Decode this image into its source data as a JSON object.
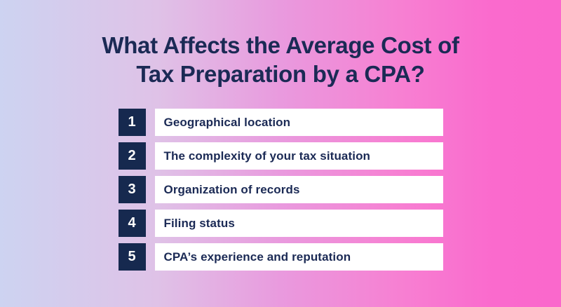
{
  "colors": {
    "gradient_left": "#cdd3f1",
    "gradient_mid": "#e99ade",
    "gradient_right": "#fa68cc",
    "navy_square": "#16294f",
    "text_navy": "#1b2a55",
    "bar_white": "#ffffff"
  },
  "title": {
    "full": "What Affects the Average Cost of Tax Preparation by a CPA?",
    "line1": "What Affects the Average Cost of",
    "line2": "Tax Preparation by a CPA?"
  },
  "list": {
    "items": [
      {
        "number": "1",
        "label": "Geographical location"
      },
      {
        "number": "2",
        "label": "The complexity of your tax situation"
      },
      {
        "number": "3",
        "label": "Organization of records"
      },
      {
        "number": "4",
        "label": "Filing status"
      },
      {
        "number": "5",
        "label": "CPA’s experience and reputation"
      }
    ]
  }
}
